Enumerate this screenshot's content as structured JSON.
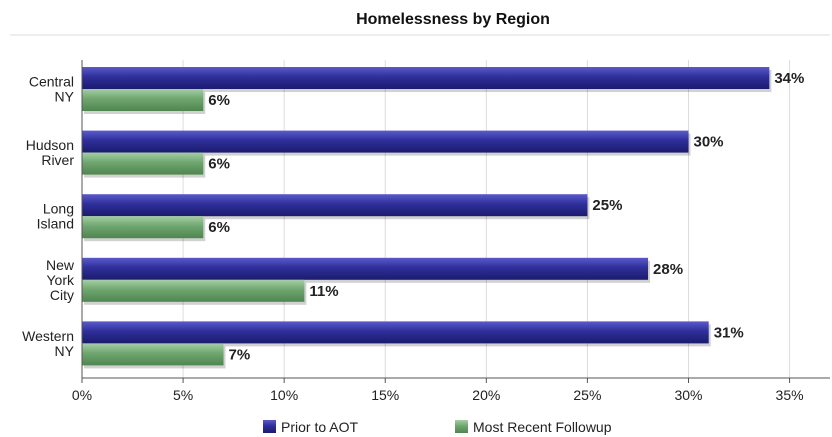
{
  "chart_data": {
    "type": "bar",
    "orientation": "horizontal",
    "title": "Homelessness by Region",
    "categories": [
      "Central NY",
      "Hudson River",
      "Long Island",
      "New York City",
      "Western NY"
    ],
    "series": [
      {
        "name": "Prior to AOT",
        "values": [
          34,
          30,
          25,
          28,
          31
        ],
        "color": "#2b2b8e"
      },
      {
        "name": "Most Recent Followup",
        "values": [
          6,
          6,
          6,
          11,
          7
        ],
        "color": "#6fa56f"
      }
    ],
    "data_labels": [
      [
        "34%",
        "30%",
        "25%",
        "28%",
        "31%"
      ],
      [
        "6%",
        "6%",
        "6%",
        "11%",
        "7%"
      ]
    ],
    "xlim": [
      0,
      37
    ],
    "x_ticks": [
      0,
      5,
      10,
      15,
      20,
      25,
      30,
      35
    ],
    "x_tick_labels": [
      "0%",
      "5%",
      "10%",
      "15%",
      "20%",
      "25%",
      "30%",
      "35%"
    ],
    "legend_position": "bottom",
    "grid": "vertical"
  }
}
